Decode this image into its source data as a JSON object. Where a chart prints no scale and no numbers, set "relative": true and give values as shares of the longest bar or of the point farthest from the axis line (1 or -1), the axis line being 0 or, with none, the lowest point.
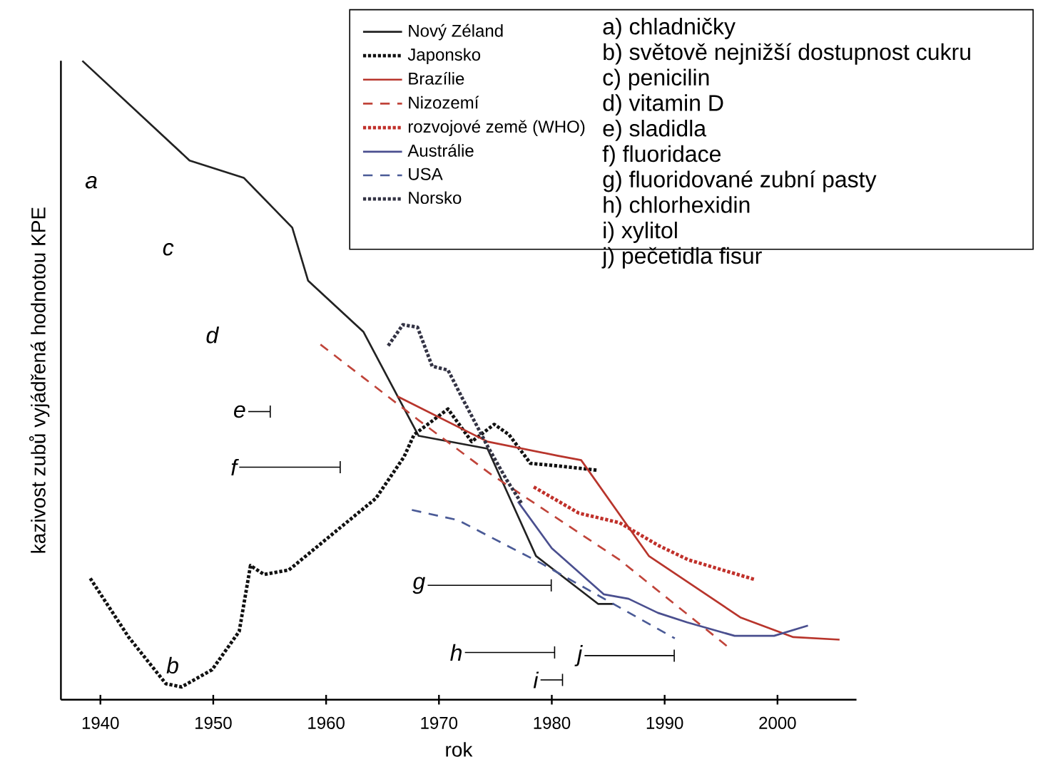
{
  "chart_data": {
    "type": "line",
    "relative": true,
    "xlabel": "rok",
    "ylabel": "kazivost zubů vyjádřená hodnotou KPE",
    "xlim": [
      1936.5,
      2007
    ],
    "xticks": [
      1940,
      1950,
      1960,
      1970,
      1980,
      1990,
      2000
    ],
    "tick_labels": "x",
    "legend": "top right",
    "series": [
      {
        "name": "Nový Zéland",
        "color": "#222222",
        "line_style": "solid",
        "x": [
          1938.4,
          1947.9,
          1952.7,
          1957.0,
          1958.4,
          1963.3,
          1968.2,
          1974.3,
          1978.6,
          1984.1,
          1985.5
        ],
        "values": [
          1.0,
          0.844,
          0.817,
          0.739,
          0.656,
          0.576,
          0.413,
          0.393,
          0.225,
          0.15,
          0.15
        ]
      },
      {
        "name": "Japonsko",
        "color": "#111111",
        "line_style": "dotted",
        "x": [
          1939.1,
          1942.5,
          1945.8,
          1947.2,
          1949.9,
          1952.3,
          1953.3,
          1954.5,
          1956.7,
          1961.3,
          1964.4,
          1966.9,
          1967.8,
          1970.8,
          1972.9,
          1974.9,
          1976.2,
          1978.1,
          1980.5,
          1984.1
        ],
        "values": [
          0.19,
          0.098,
          0.025,
          0.02,
          0.047,
          0.107,
          0.21,
          0.196,
          0.203,
          0.27,
          0.315,
          0.38,
          0.415,
          0.455,
          0.404,
          0.431,
          0.415,
          0.37,
          0.366,
          0.359
        ]
      },
      {
        "name": "Brazílie",
        "color": "#b8352c",
        "line_style": "solid",
        "x": [
          1966.3,
          1974.3,
          1980.5,
          1982.6,
          1988.6,
          1996.7,
          2001.4,
          2005.5
        ],
        "values": [
          0.475,
          0.404,
          0.382,
          0.375,
          0.225,
          0.129,
          0.098,
          0.094
        ]
      },
      {
        "name": "Nizozemí",
        "color": "#c0443a",
        "line_style": "dashed",
        "x": [
          1959.5,
          1968.2,
          1974.6,
          1986.0,
          1995.8
        ],
        "values": [
          0.556,
          0.4375,
          0.353,
          0.219,
          0.08
        ]
      },
      {
        "name": "rozvojové země (WHO)",
        "color": "#c0302a",
        "line_style": "dotted",
        "x": [
          1978.4,
          1982.4,
          1986.0,
          1989.5,
          1992.1,
          1998.0
        ],
        "values": [
          0.333,
          0.292,
          0.277,
          0.241,
          0.219,
          0.188
        ]
      },
      {
        "name": "Austrálie",
        "color": "#4a4f8f",
        "line_style": "solid",
        "x": [
          1977.0,
          1980.0,
          1984.6,
          1986.8,
          1989.4,
          1992.0,
          1996.2,
          1999.7,
          2002.7
        ],
        "values": [
          0.31,
          0.237,
          0.165,
          0.158,
          0.136,
          0.121,
          0.1,
          0.1,
          0.116
        ]
      },
      {
        "name": "USA",
        "color": "#4a5a96",
        "line_style": "dashed",
        "x": [
          1967.6,
          1971.7,
          1979.0,
          1990.9
        ],
        "values": [
          0.297,
          0.281,
          0.214,
          0.096
        ]
      },
      {
        "name": "Norsko",
        "color": "#333344",
        "line_style": "dotted",
        "x": [
          1965.5,
          1966.8,
          1968.1,
          1969.4,
          1970.8,
          1972.1,
          1974.3,
          1976.0,
          1977.3
        ],
        "values": [
          0.554,
          0.587,
          0.583,
          0.522,
          0.516,
          0.471,
          0.397,
          0.344,
          0.308
        ]
      }
    ],
    "annotations": [
      "a) chladničky",
      "b) světově nejnižší dostupnost cukru",
      "c) penicilin",
      "d) vitamin D",
      "e) sladidla",
      "f) fluoridace",
      "g) fluoridované zubní pasty",
      "h) chlorhexidin",
      "i) xylitol",
      "j) pečetidla fisur",
      "a",
      "b",
      "c",
      "d",
      "e",
      "f",
      "g",
      "h",
      "i",
      "j"
    ]
  }
}
